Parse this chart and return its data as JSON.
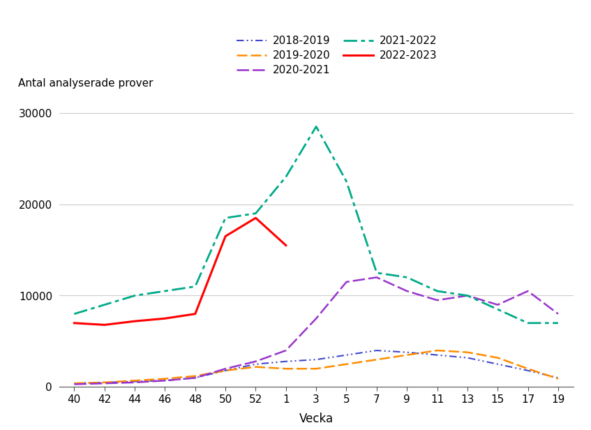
{
  "ylabel": "Antal analyserade prover",
  "xlabel": "Vecka",
  "ylim": [
    0,
    32000
  ],
  "yticks": [
    0,
    10000,
    20000,
    30000
  ],
  "ytick_labels": [
    "0",
    "10000",
    "20000",
    "30000"
  ],
  "xtick_labels": [
    "40",
    "42",
    "44",
    "46",
    "48",
    "50",
    "52",
    "1",
    "3",
    "5",
    "7",
    "9",
    "11",
    "13",
    "15",
    "17",
    "19"
  ],
  "background_color": "#ffffff",
  "series": {
    "2018-2019": {
      "color": "#3f48cc",
      "linewidth": 1.5,
      "values": [
        400,
        500,
        600,
        700,
        1000,
        1800,
        2500,
        2800,
        3000,
        3500,
        4000,
        3800,
        3500,
        3200,
        2500,
        1800,
        1000
      ]
    },
    "2019-2020": {
      "color": "#ff8c00",
      "linewidth": 1.8,
      "values": [
        400,
        500,
        700,
        900,
        1200,
        1800,
        2200,
        2000,
        2000,
        2500,
        3000,
        3500,
        4000,
        3800,
        3200,
        2000,
        900
      ]
    },
    "2020-2021": {
      "color": "#9933cc",
      "linewidth": 1.8,
      "values": [
        300,
        400,
        500,
        700,
        1000,
        2000,
        2800,
        4000,
        7500,
        11500,
        12000,
        10500,
        9500,
        10000,
        9000,
        10500,
        8000
      ]
    },
    "2021-2022": {
      "color": "#00aa88",
      "linewidth": 2.0,
      "values": [
        8000,
        9000,
        10000,
        10500,
        11000,
        18500,
        19000,
        23000,
        28500,
        22500,
        12500,
        12000,
        10500,
        10000,
        8500,
        7000,
        7000
      ]
    },
    "2022-2023": {
      "color": "#ff0000",
      "linewidth": 2.2,
      "values": [
        7000,
        6800,
        7200,
        7500,
        8000,
        16500,
        18500,
        15500,
        null,
        null,
        null,
        null,
        null,
        null,
        null,
        null,
        null
      ]
    }
  }
}
